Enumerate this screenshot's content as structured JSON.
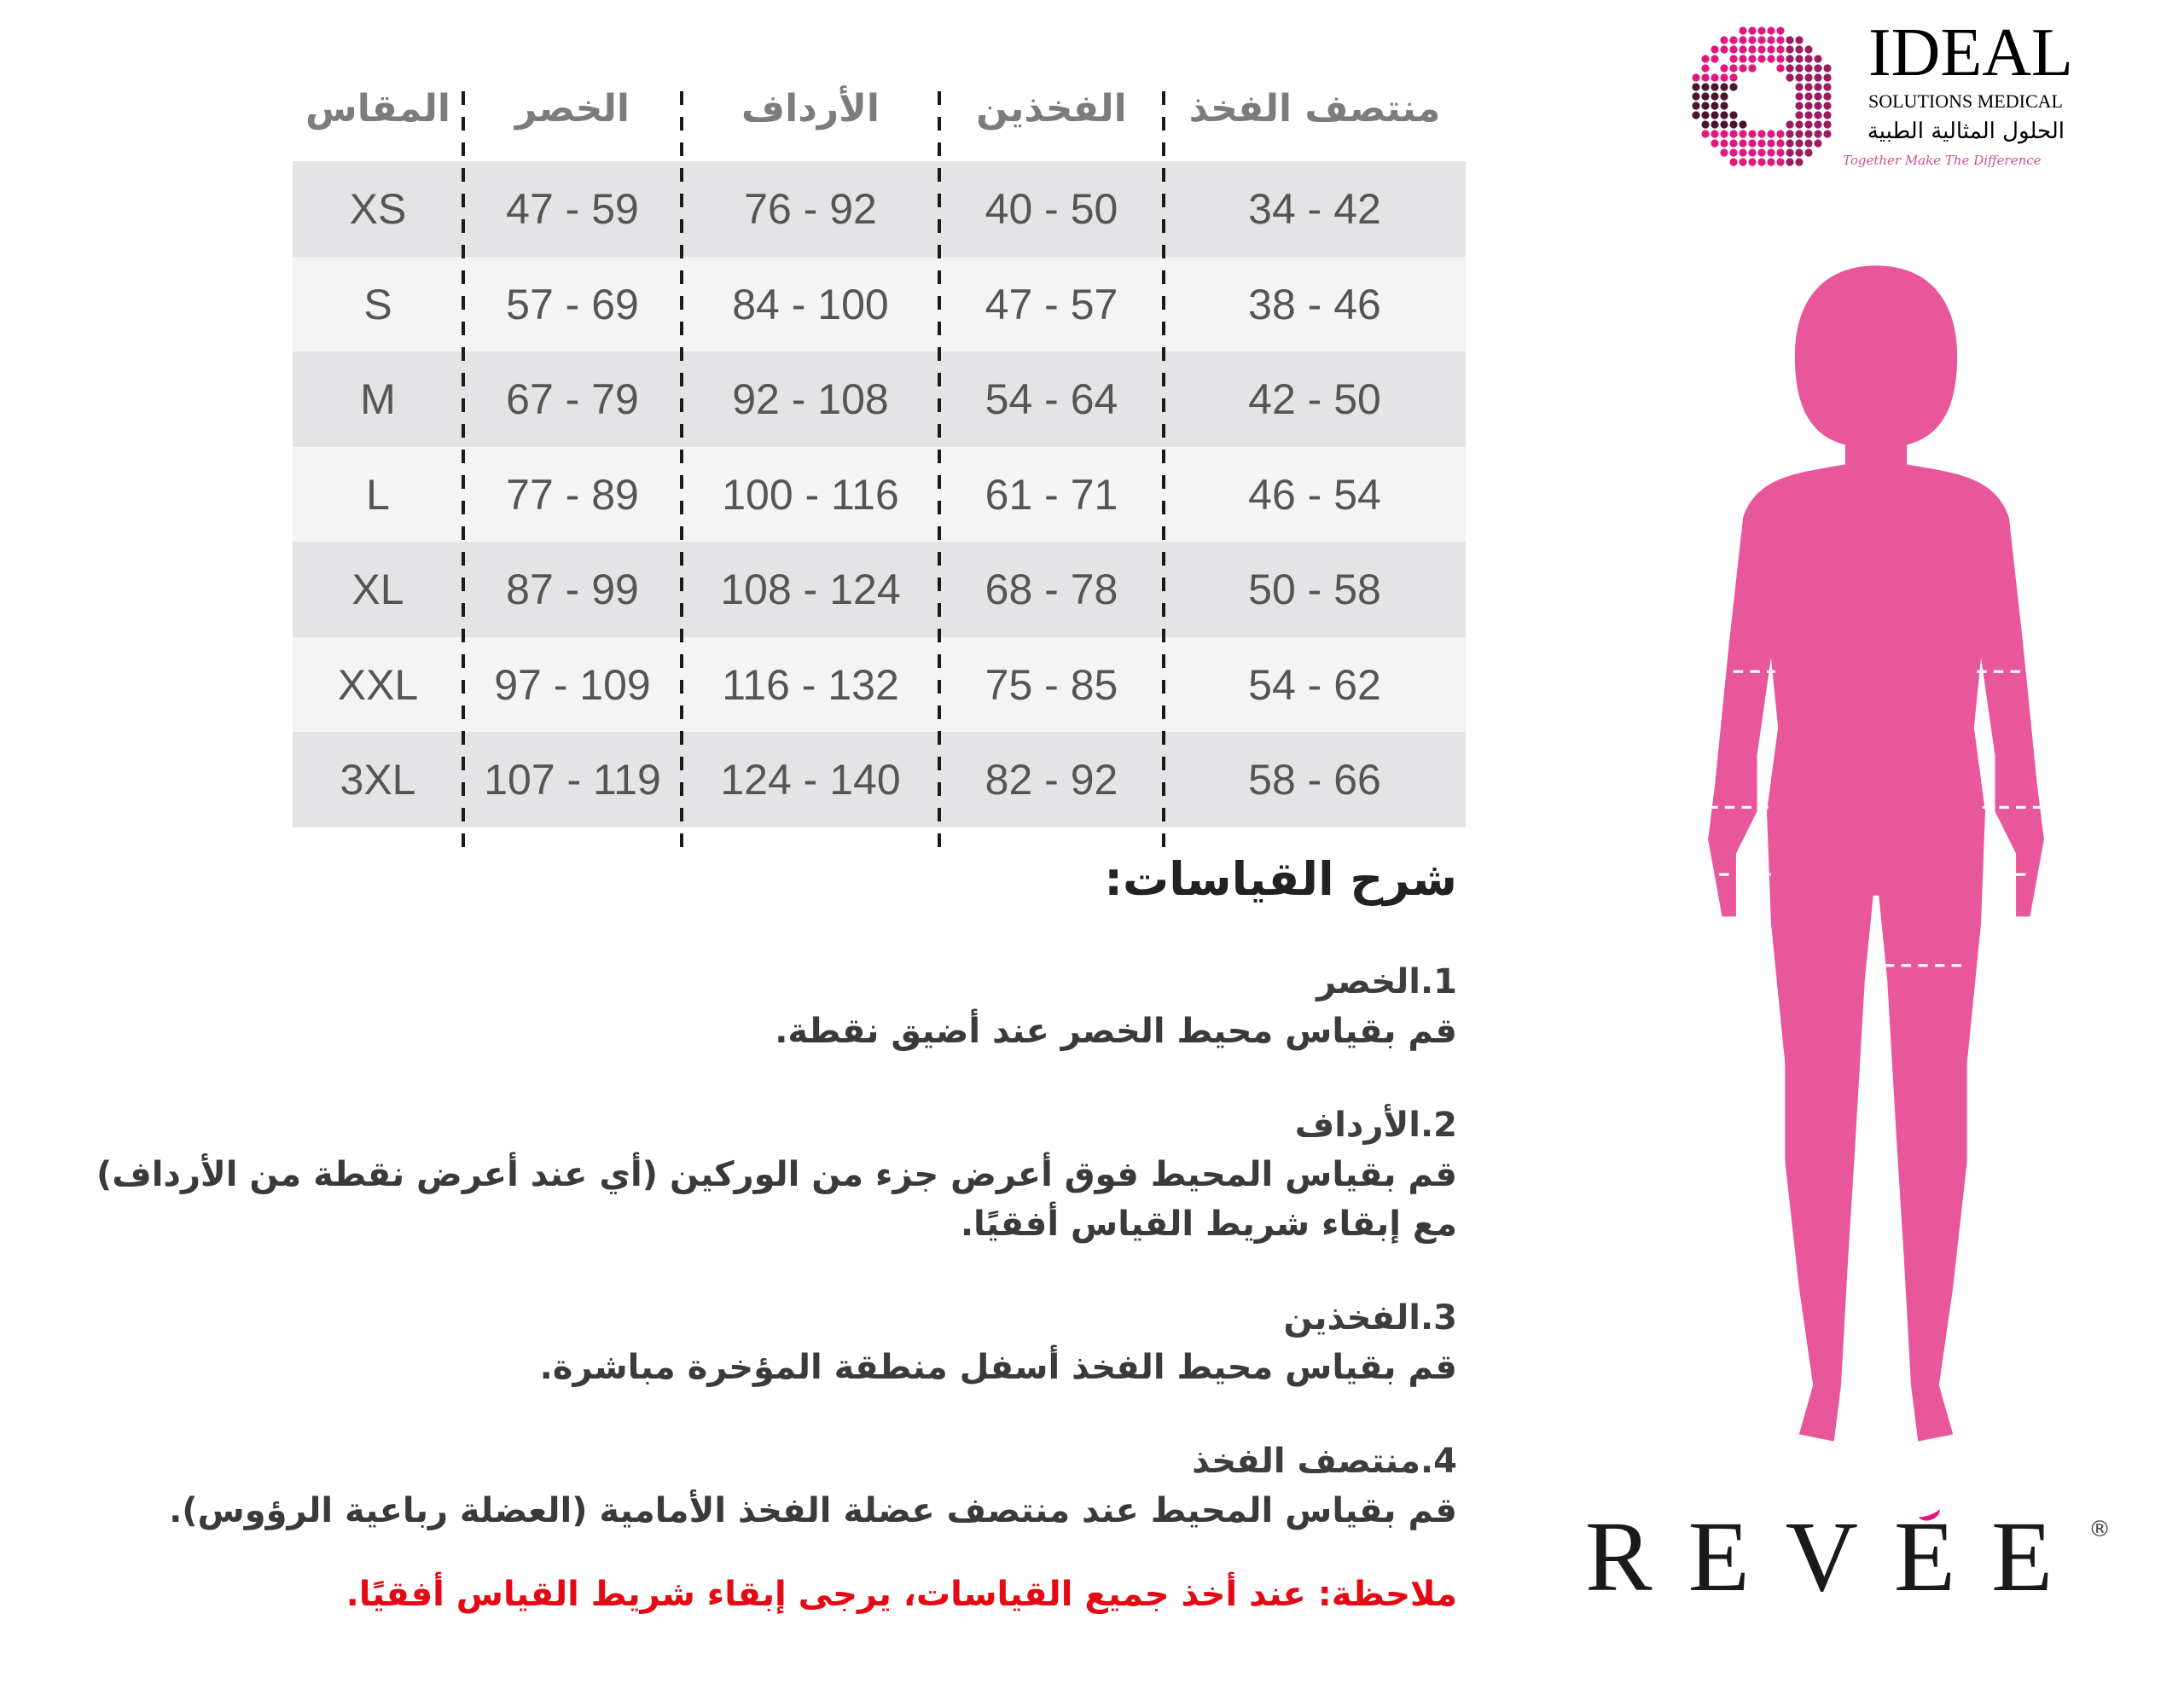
{
  "logo": {
    "name": "IDEAL",
    "subtitle": "SOLUTIONS MEDICAL",
    "arabic_name": "الحلول المثالية الطبية",
    "tagline": "Together Make The Difference",
    "colors": {
      "dark": "#4a1530",
      "mid": "#9c1a5e",
      "bright": "#e0187e"
    }
  },
  "table": {
    "headers": [
      "المقاس",
      "الخصر",
      "الأرداف",
      "الفخذين",
      "منتصف الفخذ"
    ],
    "rows": [
      [
        "XS",
        "47 - 59",
        "76 - 92",
        "40 - 50",
        "34 - 42"
      ],
      [
        "S",
        "57 - 69",
        "84 - 100",
        "47 - 57",
        "38 - 46"
      ],
      [
        "M",
        "67 - 79",
        "92 - 108",
        "54 - 64",
        "42 - 50"
      ],
      [
        "L",
        "77 - 89",
        "100 - 116",
        "61 - 71",
        "46 - 54"
      ],
      [
        "XL",
        "87 - 99",
        "108 - 124",
        "68 - 78",
        "50 - 58"
      ],
      [
        "XXL",
        "97 - 109",
        "116 - 132",
        "75 - 85",
        "54 - 62"
      ],
      [
        "3XL",
        "107 - 119",
        "124 - 140",
        "82 - 92",
        "58 - 66"
      ]
    ],
    "row_colors": [
      "#e4e4e6",
      "#f4f4f5"
    ]
  },
  "explanation": {
    "title": "شرح القياسات:",
    "items": [
      {
        "title": "1.الخصر",
        "text": "قم بقياس محيط الخصر عند أضيق نقطة."
      },
      {
        "title": "2.الأرداف",
        "text": "قم بقياس المحيط فوق أعرض جزء من الوركين (أي عند أعرض نقطة من الأرداف) مع إبقاء شريط القياس أفقيًا."
      },
      {
        "title": "3.الفخذين",
        "text": "قم بقياس محيط الفخذ أسفل منطقة المؤخرة مباشرة."
      },
      {
        "title": "4.منتصف الفخذ",
        "text": "قم بقياس المحيط عند منتصف عضلة الفخذ الأمامية (العضلة رباعية الرؤوس)."
      }
    ],
    "note": "ملاحظة: عند أخذ جميع القياسات، يرجى إبقاء شريط القياس أفقيًا.",
    "note_color": "#e50914"
  },
  "figure": {
    "color": "#e8579a",
    "icon": "female-body-silhouette"
  },
  "brand": {
    "name": "REVEE",
    "mark": "®",
    "accent_color": "#e0187e"
  }
}
